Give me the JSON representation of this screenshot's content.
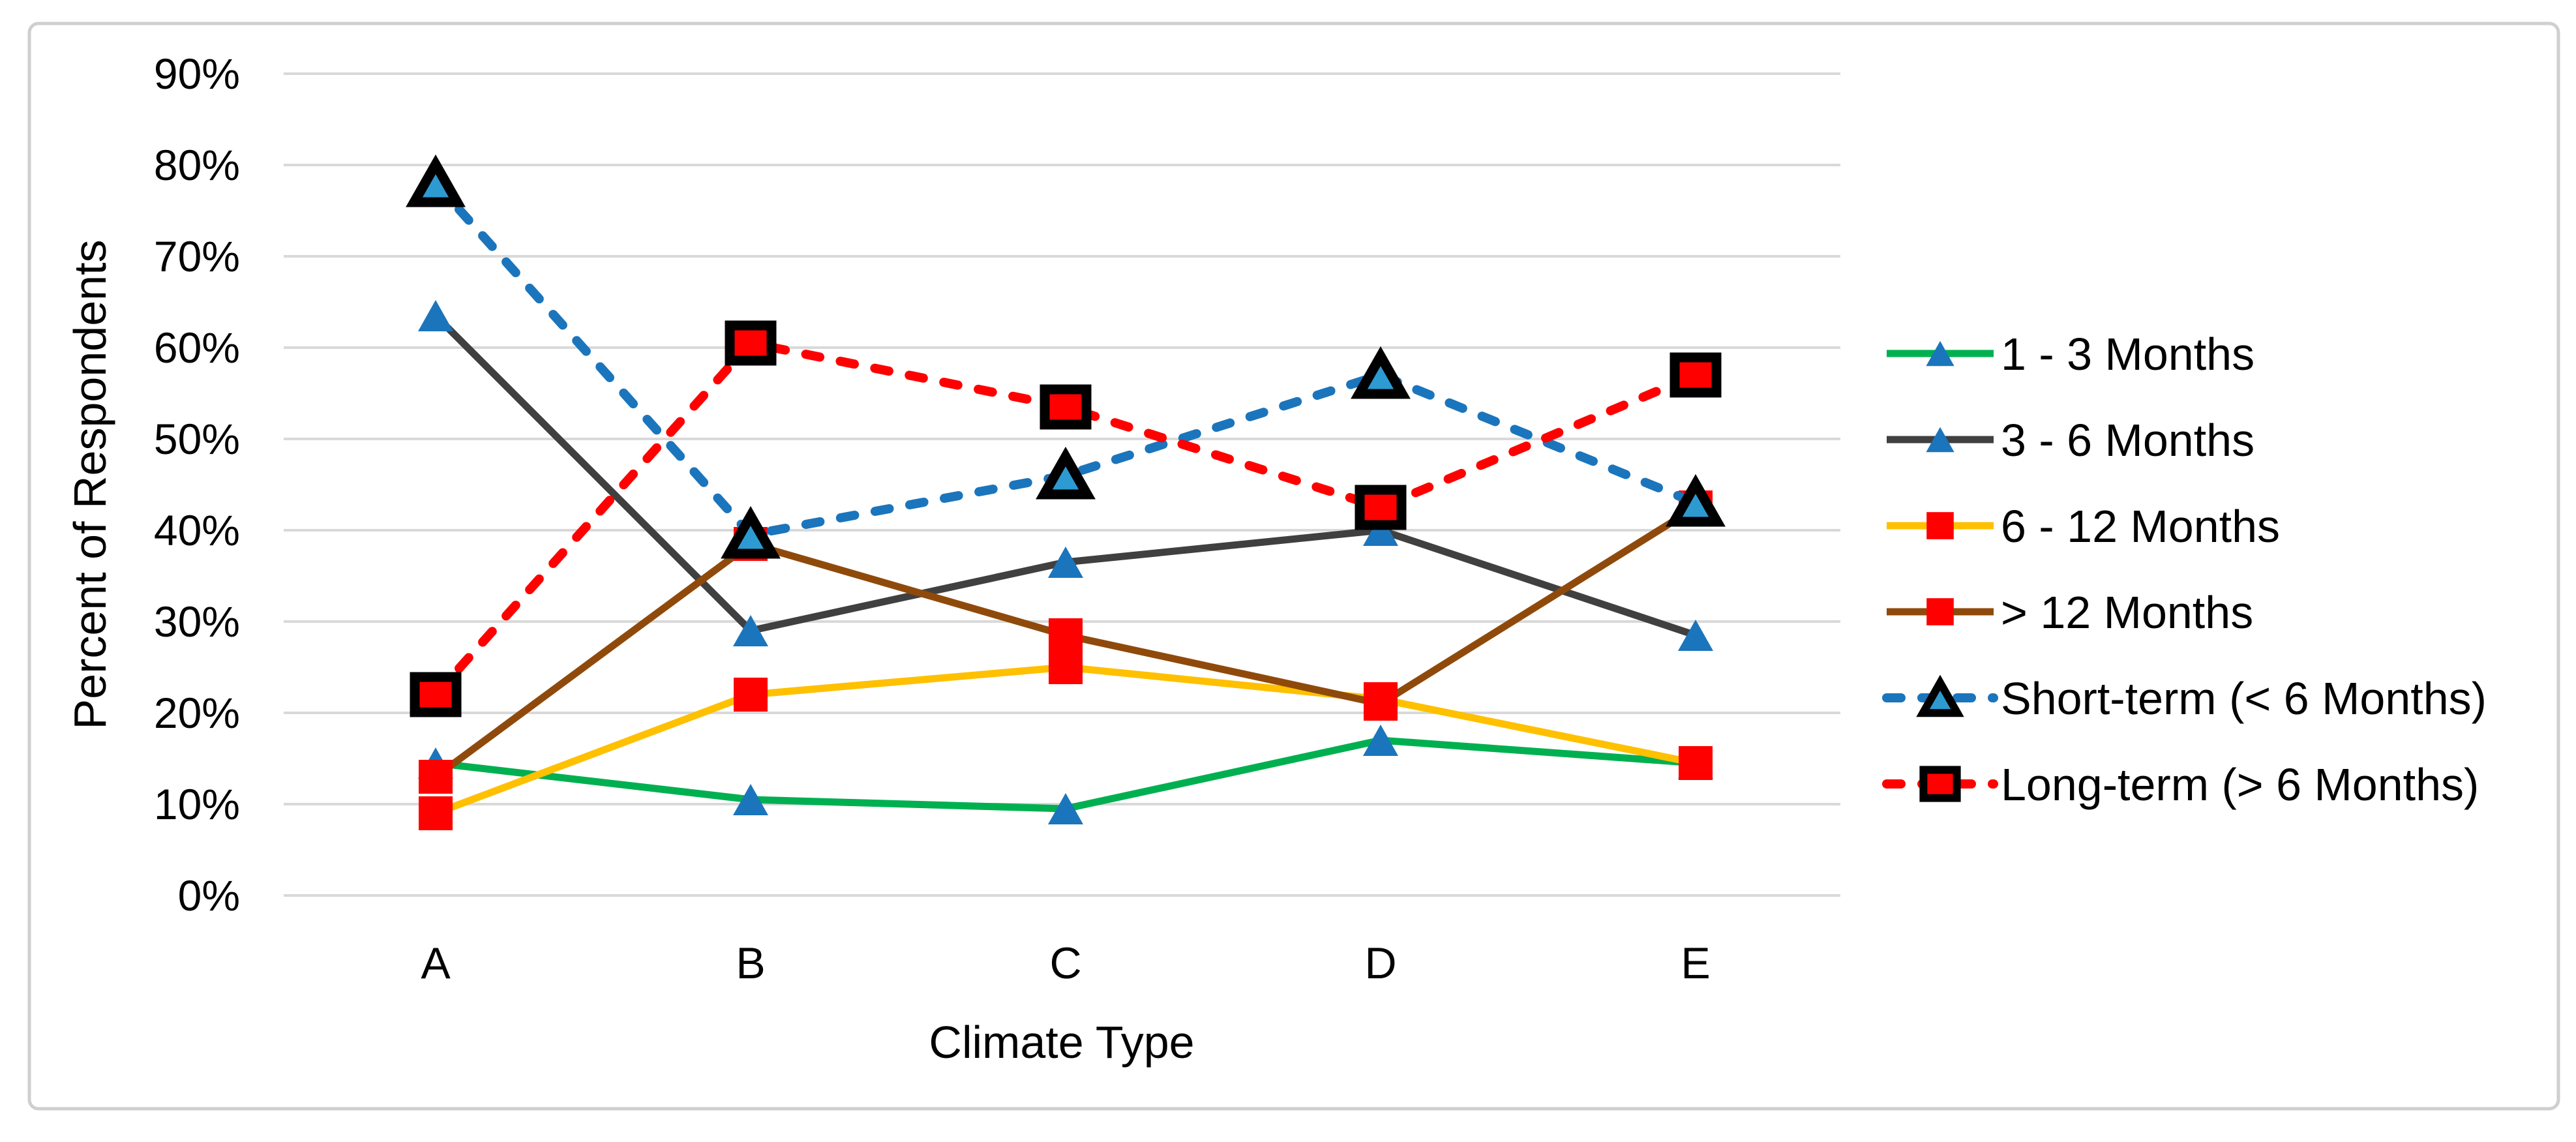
{
  "chart_data": {
    "type": "line",
    "title": "",
    "xlabel": "Climate Type",
    "ylabel": "Percent of Respondents",
    "categories": [
      "A",
      "B",
      "C",
      "D",
      "E"
    ],
    "ylim": [
      0,
      90
    ],
    "ytick_step": 10,
    "ytick_labels": [
      "0%",
      "10%",
      "20%",
      "30%",
      "40%",
      "50%",
      "60%",
      "70%",
      "80%",
      "90%"
    ],
    "grid": "horizontal",
    "gridline_color": "#D9D9D9",
    "border_color": "#D0CECE",
    "legend_position": "right",
    "series": [
      {
        "name": "1 - 3 Months",
        "values": [
          14.5,
          10.5,
          9.5,
          17,
          14.5
        ],
        "line_color": "#00B050",
        "line_style": "solid",
        "marker": "triangle",
        "marker_color": "#1B75BC"
      },
      {
        "name": "3 - 6 Months",
        "values": [
          63.5,
          29,
          36.5,
          40,
          28.5
        ],
        "line_color": "#404040",
        "line_style": "solid",
        "marker": "triangle",
        "marker_color": "#1B75BC"
      },
      {
        "name": "6 - 12 Months",
        "values": [
          9,
          22,
          25,
          21.5,
          14.5
        ],
        "line_color": "#FFC000",
        "line_style": "solid",
        "marker": "square",
        "marker_color": "#FF0000"
      },
      {
        "name": "> 12 Months",
        "values": [
          13,
          38.5,
          28.5,
          21,
          42.5
        ],
        "line_color": "#8F4A0B",
        "line_style": "solid",
        "marker": "square",
        "marker_color": "#FF0000"
      },
      {
        "name": "Short-term (< 6 Months)",
        "values": [
          78,
          39.5,
          46,
          57,
          43
        ],
        "line_color": "#1B75BC",
        "line_style": "dashed",
        "marker": "triangle-outlined",
        "marker_color": "#2E9AD2",
        "marker_outline": "#000000"
      },
      {
        "name": "Long-term (> 6 Months)",
        "values": [
          22,
          60.5,
          53.5,
          42.5,
          57
        ],
        "line_color": "#FF0000",
        "line_style": "dashed",
        "marker": "square-outlined",
        "marker_color": "#FF0000",
        "marker_outline": "#000000"
      }
    ]
  }
}
